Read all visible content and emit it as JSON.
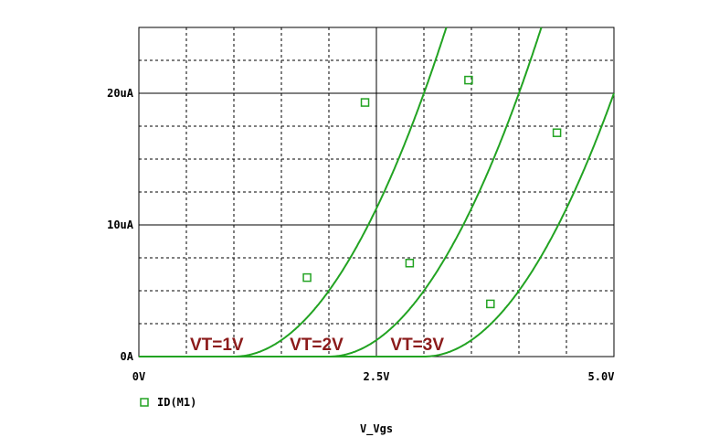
{
  "chart_data": {
    "type": "line",
    "xlabel": "V_Vgs",
    "ylabel": "",
    "xlim": [
      0,
      5.0
    ],
    "ylim": [
      0,
      25
    ],
    "x_ticks": [
      "0V",
      "2.5V",
      "5.0V"
    ],
    "y_ticks": [
      "0A",
      "10uA",
      "20uA"
    ],
    "grid": true,
    "legend": {
      "placement": "bottom-left",
      "entries": [
        "ID(M1)"
      ]
    },
    "colors": {
      "series": "#22a322",
      "annotation": "#8b1a1a",
      "grid": "#000000"
    },
    "series": [
      {
        "vt": 1,
        "x": [
          0,
          1,
          1.5,
          2.0,
          2.5,
          2.62
        ],
        "y": [
          0,
          0,
          1.25,
          5.0,
          11.25,
          13.1
        ],
        "markers": [
          [
            1.77,
            6.0
          ],
          [
            2.38,
            19.3
          ]
        ]
      },
      {
        "vt": 2,
        "x": [
          0,
          2,
          2.5,
          3.0,
          3.5,
          3.62
        ],
        "y": [
          0,
          0,
          1.25,
          5.0,
          11.25,
          13.1
        ],
        "markers": [
          [
            2.85,
            7.1
          ],
          [
            3.47,
            21.0
          ]
        ]
      },
      {
        "vt": 3,
        "x": [
          0,
          3,
          3.5,
          4.0,
          4.5,
          4.62
        ],
        "y": [
          0,
          0,
          1.25,
          5.0,
          11.25,
          13.1
        ],
        "markers": [
          [
            3.7,
            4.0
          ],
          [
            4.4,
            17.0
          ]
        ]
      }
    ],
    "annotations": [
      {
        "text": "VT=1V",
        "x": 0.82,
        "y": 0.5
      },
      {
        "text": "VT=2V",
        "x": 1.87,
        "y": 0.5
      },
      {
        "text": "VT=3V",
        "x": 2.93,
        "y": 0.5
      }
    ]
  }
}
